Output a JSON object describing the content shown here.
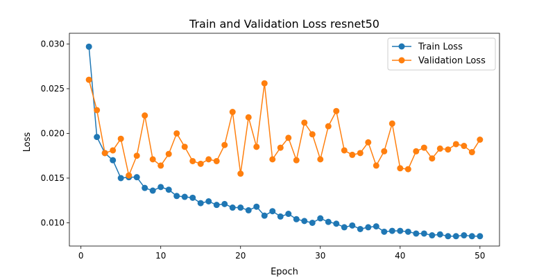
{
  "chart_data": {
    "type": "line",
    "title": "Train and Validation Loss resnet50",
    "xlabel": "Epoch",
    "ylabel": "Loss",
    "xlim": [
      -1.45,
      52.45
    ],
    "ylim": [
      0.0074,
      0.0312
    ],
    "xticks": [
      0,
      10,
      20,
      30,
      40,
      50
    ],
    "xtick_labels": [
      "0",
      "10",
      "20",
      "30",
      "40",
      "50"
    ],
    "yticks": [
      0.01,
      0.015,
      0.02,
      0.025,
      0.03
    ],
    "ytick_labels": [
      "0.010",
      "0.015",
      "0.020",
      "0.025",
      "0.030"
    ],
    "grid": false,
    "legend_position": "top-right",
    "x": [
      1,
      2,
      3,
      4,
      5,
      6,
      7,
      8,
      9,
      10,
      11,
      12,
      13,
      14,
      15,
      16,
      17,
      18,
      19,
      20,
      21,
      22,
      23,
      24,
      25,
      26,
      27,
      28,
      29,
      30,
      31,
      32,
      33,
      34,
      35,
      36,
      37,
      38,
      39,
      40,
      41,
      42,
      43,
      44,
      45,
      46,
      47,
      48,
      49,
      50
    ],
    "series": [
      {
        "name": "Train Loss",
        "color": "#1f77b4",
        "marker": "circle",
        "values": [
          0.0297,
          0.0196,
          0.0178,
          0.017,
          0.015,
          0.0151,
          0.0151,
          0.0139,
          0.0136,
          0.014,
          0.0137,
          0.013,
          0.0129,
          0.0128,
          0.0122,
          0.0124,
          0.012,
          0.0121,
          0.0117,
          0.0117,
          0.0114,
          0.0118,
          0.0108,
          0.0113,
          0.0107,
          0.011,
          0.0104,
          0.0102,
          0.01,
          0.0105,
          0.0101,
          0.0099,
          0.0095,
          0.0097,
          0.0093,
          0.0095,
          0.0096,
          0.009,
          0.0091,
          0.0091,
          0.009,
          0.0088,
          0.0088,
          0.0086,
          0.0087,
          0.0085,
          0.0085,
          0.0086,
          0.0085,
          0.0085
        ]
      },
      {
        "name": "Validation Loss",
        "color": "#ff7f0e",
        "marker": "circle",
        "values": [
          0.026,
          0.0226,
          0.0178,
          0.0181,
          0.0194,
          0.0153,
          0.0175,
          0.022,
          0.0171,
          0.0164,
          0.0177,
          0.02,
          0.0185,
          0.0169,
          0.0166,
          0.0171,
          0.0169,
          0.0187,
          0.0224,
          0.0155,
          0.0218,
          0.0185,
          0.0256,
          0.0171,
          0.0184,
          0.0195,
          0.017,
          0.0212,
          0.0199,
          0.0171,
          0.0208,
          0.0225,
          0.0181,
          0.0176,
          0.0178,
          0.019,
          0.0164,
          0.018,
          0.0211,
          0.0161,
          0.016,
          0.018,
          0.0184,
          0.0172,
          0.0183,
          0.0182,
          0.0188,
          0.0186,
          0.0179,
          0.0193
        ]
      }
    ]
  }
}
